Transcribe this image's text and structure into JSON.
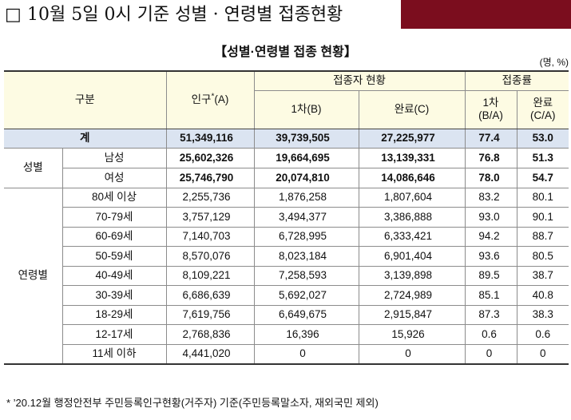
{
  "title": {
    "box": "□",
    "text": "10월 5일 0시 기준 성별 · 연령별 접종현황"
  },
  "colors": {
    "title_accent": "#7b0d1e",
    "header_bg": "#fdfbe3",
    "total_bg": "#dbe4f1"
  },
  "table_title": "【성별·연령별 접종 현황】",
  "unit": "(명, %)",
  "headers": {
    "category": "구분",
    "population": "인구",
    "population_mark": "*",
    "population_suffix": "(A)",
    "vaccinated_group": "접종자 현황",
    "first_dose": "1차(B)",
    "completed": "완료(C)",
    "rate_group": "접종률",
    "first_rate_line1": "1차",
    "first_rate_line2": "(B/A)",
    "completed_rate_line1": "완료",
    "completed_rate_line2": "(C/A)"
  },
  "total": {
    "label": "계",
    "population": "51,349,116",
    "first_dose": "39,739,505",
    "completed": "27,225,977",
    "first_rate": "77.4",
    "completed_rate": "53.0"
  },
  "gender": {
    "label": "성별",
    "rows": [
      {
        "label": "남성",
        "population": "25,602,326",
        "first_dose": "19,664,695",
        "completed": "13,139,331",
        "first_rate": "76.8",
        "completed_rate": "51.3"
      },
      {
        "label": "여성",
        "population": "25,746,790",
        "first_dose": "20,074,810",
        "completed": "14,086,646",
        "first_rate": "78.0",
        "completed_rate": "54.7"
      }
    ]
  },
  "age": {
    "label": "연령별",
    "rows": [
      {
        "label": "80세 이상",
        "population": "2,255,736",
        "first_dose": "1,876,258",
        "completed": "1,807,604",
        "first_rate": "83.2",
        "completed_rate": "80.1"
      },
      {
        "label": "70-79세",
        "population": "3,757,129",
        "first_dose": "3,494,377",
        "completed": "3,386,888",
        "first_rate": "93.0",
        "completed_rate": "90.1"
      },
      {
        "label": "60-69세",
        "population": "7,140,703",
        "first_dose": "6,728,995",
        "completed": "6,333,421",
        "first_rate": "94.2",
        "completed_rate": "88.7"
      },
      {
        "label": "50-59세",
        "population": "8,570,076",
        "first_dose": "8,023,184",
        "completed": "6,901,404",
        "first_rate": "93.6",
        "completed_rate": "80.5"
      },
      {
        "label": "40-49세",
        "population": "8,109,221",
        "first_dose": "7,258,593",
        "completed": "3,139,898",
        "first_rate": "89.5",
        "completed_rate": "38.7"
      },
      {
        "label": "30-39세",
        "population": "6,686,639",
        "first_dose": "5,692,027",
        "completed": "2,724,989",
        "first_rate": "85.1",
        "completed_rate": "40.8"
      },
      {
        "label": "18-29세",
        "population": "7,619,756",
        "first_dose": "6,649,675",
        "completed": "2,915,847",
        "first_rate": "87.3",
        "completed_rate": "38.3"
      },
      {
        "label": "12-17세",
        "population": "2,768,836",
        "first_dose": "16,396",
        "completed": "15,926",
        "first_rate": "0.6",
        "completed_rate": "0.6"
      },
      {
        "label": "11세 이하",
        "population": "4,441,020",
        "first_dose": "0",
        "completed": "0",
        "first_rate": "0",
        "completed_rate": "0"
      }
    ]
  },
  "footnote": "* ’20.12월 행정안전부 주민등록인구현황(거주자) 기준(주민등록말소자, 재외국민 제외)"
}
